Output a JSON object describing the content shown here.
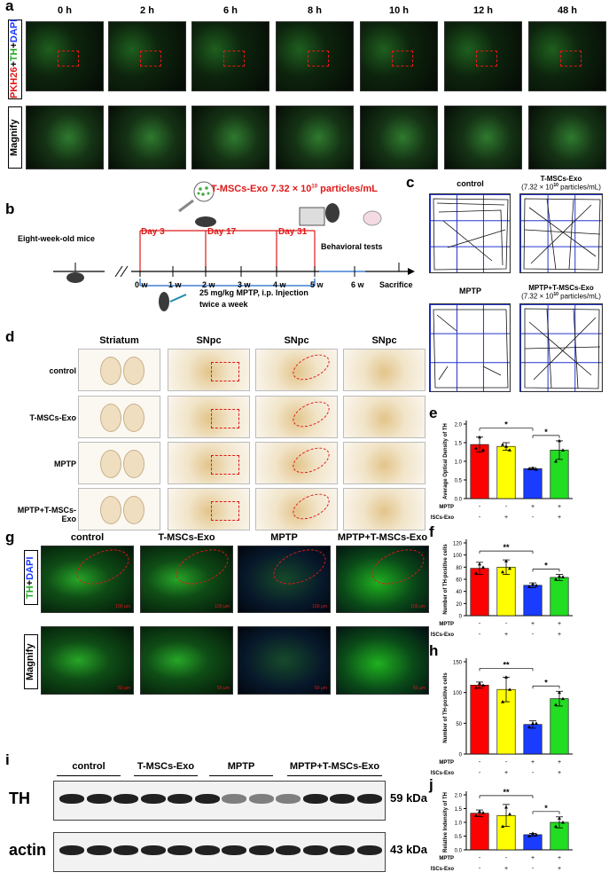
{
  "panel_a": {
    "label": "a",
    "row_label_top": "PKH26+TH+DAPI",
    "row_label_bottom": "Magnify",
    "timepoints": [
      "0 h",
      "2 h",
      "6 h",
      "8 h",
      "10 h",
      "12 h",
      "48 h"
    ]
  },
  "panel_b": {
    "label": "b",
    "exo_label": "T-MSCs-Exo 7.32 × 10",
    "exo_sup": "10",
    "exo_unit": " particles/mL",
    "mice_label": "Eight-week-old mice",
    "days": [
      "Day 3",
      "Day 17",
      "Day 31"
    ],
    "behavioral": "Behavioral tests",
    "weeks": [
      "0 w",
      "1 w",
      "2 w",
      "3 w",
      "4 w",
      "5 w",
      "6 w"
    ],
    "sacrifice": "Sacrifice",
    "mptp_line1": "25 mg/kg MPTP, i.p. Injection",
    "mptp_line2": "twice a week"
  },
  "panel_c": {
    "label": "c",
    "titles": [
      "control",
      "T-MSCs-Exo",
      "MPTP",
      "MPTP+T-MSCs-Exo"
    ],
    "subtitle": "(7.32 × 10",
    "subtitle_sup": "10",
    "subtitle_end": " particles/mL)"
  },
  "panel_d": {
    "label": "d",
    "columns": [
      "Striatum",
      "SNpc",
      "SNpc",
      "SNpc"
    ],
    "rows": [
      "control",
      "T-MSCs-Exo",
      "MPTP",
      "MPTP+T-MSCs-Exo"
    ]
  },
  "panel_g": {
    "label": "g",
    "row_label_top": "TH+DAPI",
    "row_label_bottom": "Magnify",
    "columns": [
      "control",
      "T-MSCs-Exo",
      "MPTP",
      "MPTP+T-MSCs-Exo"
    ],
    "scale_top": "100 μm",
    "scale_bottom": "50 μm"
  },
  "panel_i": {
    "label": "i",
    "groups": [
      "control",
      "T-MSCs-Exo",
      "MPTP",
      "MPTP+T-MSCs-Exo"
    ],
    "bands": [
      {
        "name": "TH",
        "size": "59 kDa"
      },
      {
        "name": "actin",
        "size": "43 kDa"
      }
    ]
  },
  "group_colors": [
    "#ff0000",
    "#ffff00",
    "#1a3cff",
    "#22dd22"
  ],
  "treatment_table": {
    "rows": [
      "MPTP",
      "T-MSCs-Exo"
    ],
    "mptp": [
      "-",
      "-",
      "+",
      "+"
    ],
    "exo": [
      "-",
      "+",
      "-",
      "+"
    ]
  },
  "chart_data": [
    {
      "panel": "e",
      "type": "bar",
      "ylabel": "Average Optical Density of TH",
      "ylim": [
        0,
        2.0
      ],
      "yticks": [
        0.0,
        0.5,
        1.0,
        1.5,
        2.0
      ],
      "ytick_labels": [
        "0.0",
        "0.5",
        "1.0",
        "1.5",
        "2.0"
      ],
      "values": [
        1.45,
        1.4,
        0.8,
        1.3
      ],
      "errors": [
        0.2,
        0.1,
        0.03,
        0.25
      ],
      "points": [
        [
          1.35,
          1.65,
          1.3
        ],
        [
          1.45,
          1.4,
          1.3
        ],
        [
          0.8,
          0.82,
          0.78
        ],
        [
          1.0,
          1.55,
          1.3
        ]
      ],
      "sig": [
        {
          "from": 0,
          "to": 2,
          "text": "*"
        },
        {
          "from": 2,
          "to": 3,
          "text": "*"
        }
      ]
    },
    {
      "panel": "f",
      "type": "bar",
      "ylabel": "Number of TH-positive cells",
      "ylim": [
        0,
        120
      ],
      "yticks": [
        0,
        20,
        40,
        60,
        80,
        100,
        120
      ],
      "ytick_labels": [
        "0",
        "20",
        "40",
        "60",
        "80",
        "100",
        "120"
      ],
      "values": [
        78,
        80,
        50,
        63
      ],
      "errors": [
        10,
        12,
        4,
        5
      ],
      "points": [
        [
          70,
          85,
          80
        ],
        [
          72,
          90,
          78
        ],
        [
          48,
          52,
          50
        ],
        [
          60,
          65,
          64
        ]
      ],
      "sig": [
        {
          "from": 0,
          "to": 2,
          "text": "**"
        },
        {
          "from": 2,
          "to": 3,
          "text": "*"
        }
      ]
    },
    {
      "panel": "h",
      "type": "bar",
      "ylabel": "Number of TH-positive cells",
      "ylim": [
        0,
        150
      ],
      "yticks": [
        0,
        50,
        100,
        150
      ],
      "ytick_labels": [
        "0",
        "50",
        "100",
        "150"
      ],
      "values": [
        112,
        105,
        48,
        90
      ],
      "errors": [
        5,
        20,
        6,
        12
      ],
      "points": [
        [
          108,
          115,
          112
        ],
        [
          85,
          125,
          105
        ],
        [
          44,
          50,
          50
        ],
        [
          80,
          100,
          90
        ]
      ],
      "sig": [
        {
          "from": 0,
          "to": 2,
          "text": "**"
        },
        {
          "from": 2,
          "to": 3,
          "text": "*"
        }
      ]
    },
    {
      "panel": "j",
      "type": "bar",
      "ylabel": "Relative Indensity of TH",
      "ylim": [
        0,
        2.0
      ],
      "yticks": [
        0.0,
        0.5,
        1.0,
        1.5,
        2.0
      ],
      "ytick_labels": [
        "0.0",
        "0.5",
        "1.0",
        "1.5",
        "2.0"
      ],
      "values": [
        1.33,
        1.25,
        0.55,
        1.0
      ],
      "errors": [
        0.12,
        0.4,
        0.05,
        0.2
      ],
      "points": [
        [
          1.25,
          1.4,
          1.35
        ],
        [
          0.85,
          1.55,
          1.3
        ],
        [
          0.5,
          0.6,
          0.55
        ],
        [
          0.85,
          1.15,
          1.0
        ]
      ],
      "sig": [
        {
          "from": 0,
          "to": 2,
          "text": "**"
        },
        {
          "from": 2,
          "to": 3,
          "text": "*"
        }
      ]
    }
  ]
}
